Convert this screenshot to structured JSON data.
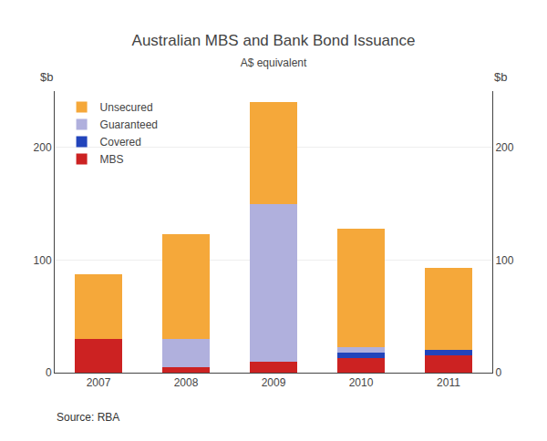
{
  "chart_data": {
    "type": "bar",
    "title": "Australian MBS and Bank Bond Issuance",
    "subtitle": "A$ equivalent",
    "ylabel": "$b",
    "y2label": "$b",
    "source": "Source: RBA",
    "categories": [
      "2007",
      "2008",
      "2009",
      "2010",
      "2011"
    ],
    "series": [
      {
        "name": "MBS",
        "color": "#cc2222",
        "values": [
          30,
          5,
          10,
          13,
          15
        ]
      },
      {
        "name": "Covered",
        "color": "#2244bb",
        "values": [
          0,
          0,
          0,
          5,
          5
        ]
      },
      {
        "name": "Guaranteed",
        "color": "#b0b0dd",
        "values": [
          0,
          25,
          140,
          5,
          0
        ]
      },
      {
        "name": "Unsecured",
        "color": "#f5a83a",
        "values": [
          57,
          93,
          90,
          105,
          73
        ]
      }
    ],
    "stacked": true,
    "ylim": [
      0,
      250
    ],
    "yticks": [
      0,
      100,
      200
    ],
    "y2lim": [
      0,
      250
    ],
    "y2ticks": [
      0,
      100,
      200
    ],
    "grid": true,
    "legend": "upper left"
  }
}
